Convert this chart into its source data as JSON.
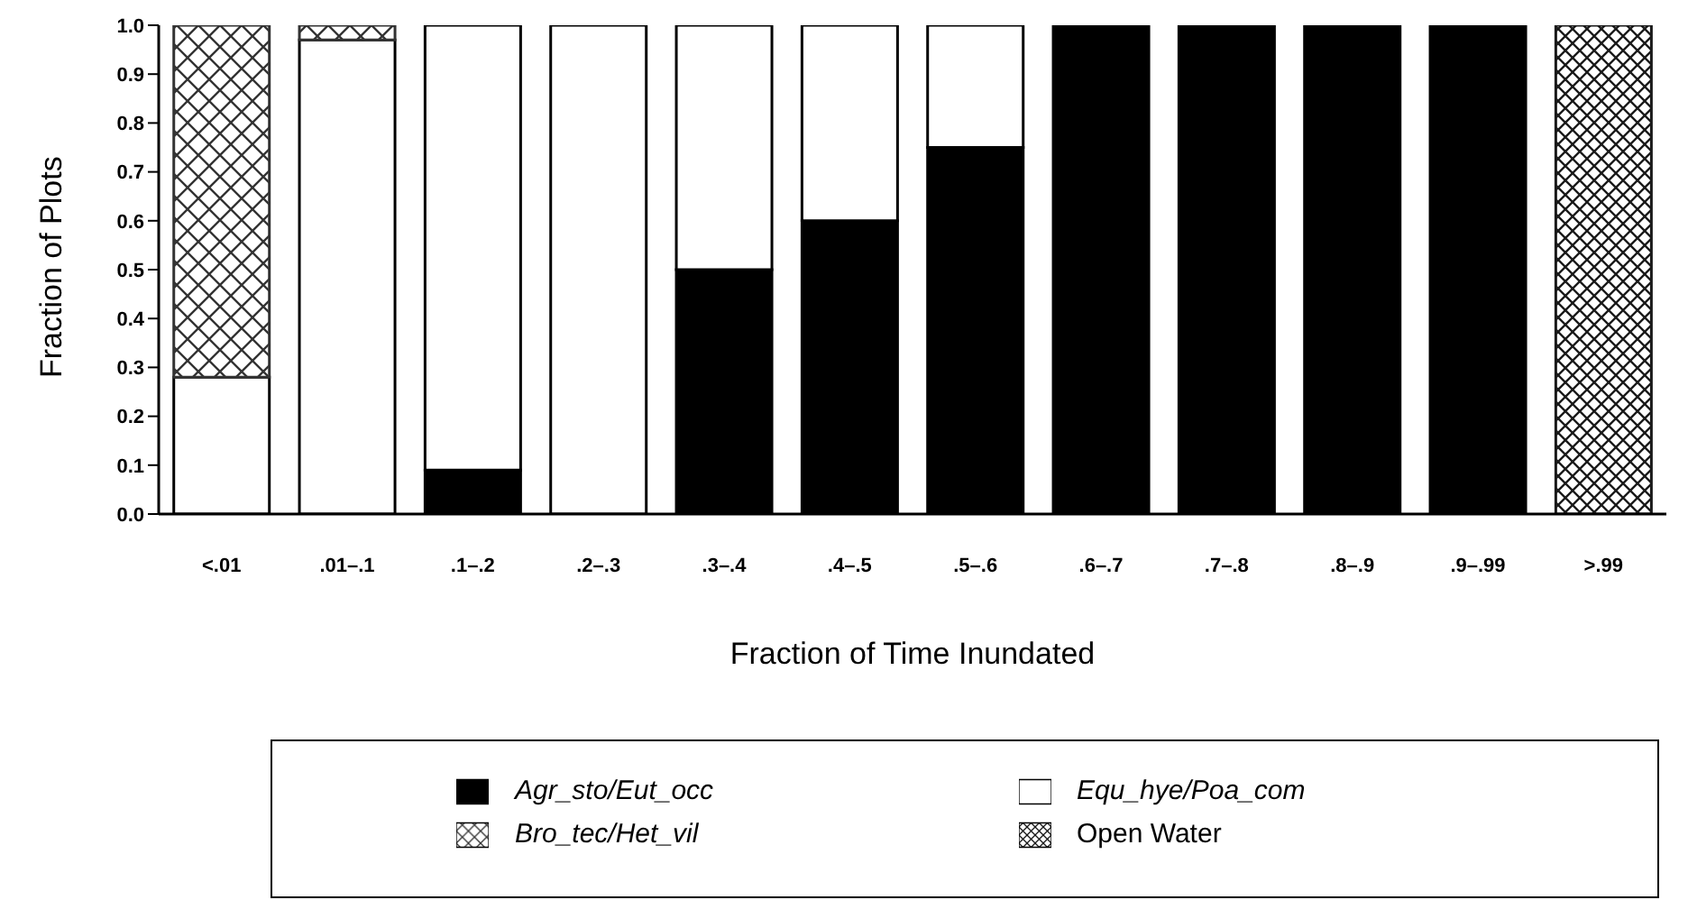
{
  "chart_data": {
    "type": "bar",
    "stacked": true,
    "xlabel": "Fraction of Time Inundated",
    "ylabel": "Fraction of Plots",
    "categories": [
      "<.01",
      ".01–.1",
      ".1–.2",
      ".2–.3",
      ".3–.4",
      ".4–.5",
      ".5–.6",
      ".6–.7",
      ".7–.8",
      ".8–.9",
      ".9–.99",
      ">.99"
    ],
    "series": [
      {
        "name": "Agr_sto/Eut_occ",
        "color": "#000000",
        "values": [
          0,
          0,
          0.09,
          0,
          0.5,
          0.6,
          0.75,
          1,
          1,
          1,
          1,
          0
        ]
      },
      {
        "name": "Equ_hye/Poa_com",
        "color": "#ffffff",
        "values": [
          0.28,
          0.97,
          0.91,
          1,
          0.5,
          0.4,
          0.25,
          0,
          0,
          0,
          0,
          0
        ]
      },
      {
        "name": "Bro_tec/Het_vil",
        "color": "#333333",
        "values": [
          0.72,
          0.03,
          0,
          0,
          0,
          0,
          0,
          0,
          0,
          0,
          0,
          0
        ]
      },
      {
        "name": "Open Water",
        "color": "#1a1a1a",
        "values": [
          0,
          0,
          0,
          0,
          0,
          0,
          0,
          0,
          0,
          0,
          0,
          1
        ]
      }
    ],
    "ylim": [
      0,
      1
    ],
    "yticks": [
      {
        "value": 0,
        "label": "0.0"
      },
      0.1,
      0.2,
      0.3,
      0.4,
      0.5,
      0.6,
      0.7,
      0.8,
      0.9,
      {
        "value": 1,
        "label": "1.0"
      }
    ],
    "grid": false,
    "legend": "bottom"
  }
}
